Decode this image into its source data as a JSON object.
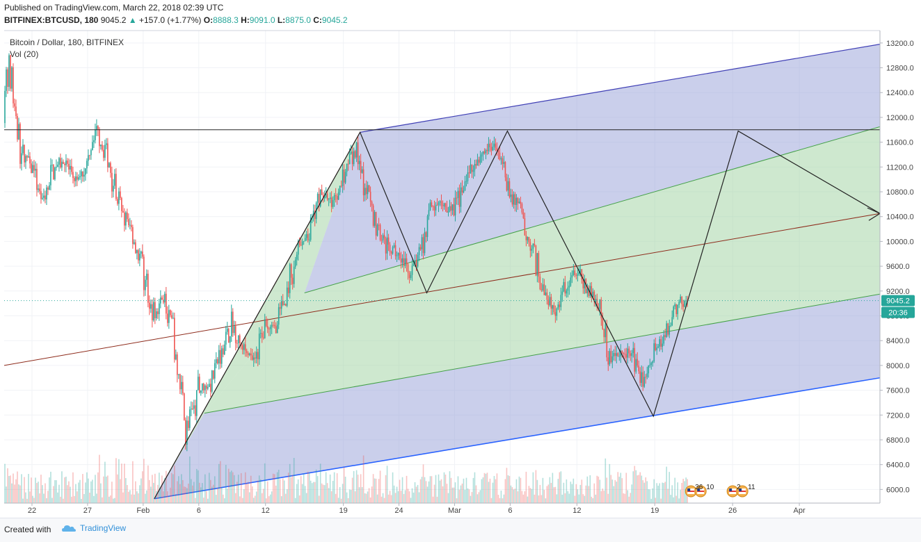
{
  "header": {
    "published": "Published on TradingView.com, March 22, 2018 02:39 UTC",
    "symbol": "BITFINEX:BTCUSD, 180",
    "last": "9045.2",
    "change": "+157.0 (+1.77%)",
    "o_label": "O:",
    "o": "8888.3",
    "h_label": "H:",
    "h": "9091.0",
    "l_label": "L:",
    "l": "8875.0",
    "c_label": "C:",
    "c": "9045.2"
  },
  "legend": {
    "title": "Bitcoin / Dollar, 180, BITFINEX",
    "volume": "Vol (20)"
  },
  "footer": {
    "created_with": "Created with",
    "brand": "TradingView"
  },
  "events": {
    "event1_a": "36",
    "event1_b": "10",
    "event2_a": "2",
    "event2_b": "11"
  },
  "colors": {
    "up": "#26a69a",
    "down": "#ef5350",
    "channel_purple": "#9fa8da",
    "channel_green": "#a5d6a7",
    "median_line": "#8d2a1a",
    "last_price": "#26a69a"
  },
  "chart_data": {
    "type": "candlestick",
    "title": "Bitcoin / Dollar, 180, BITFINEX",
    "interval_minutes": 180,
    "last_price_label": "9045.2",
    "countdown_label": "20:36",
    "y_ticks": [
      13200,
      12800,
      12400,
      12000,
      11600,
      11200,
      10800,
      10400,
      10000,
      9600,
      9200,
      8800,
      8400,
      8000,
      7600,
      7200,
      6800,
      6400,
      6000
    ],
    "y_tick_labels": [
      "13200.0",
      "12800.0",
      "12400.0",
      "12000.0",
      "11600.0",
      "11200.0",
      "10800.0",
      "10400.0",
      "10000.0",
      "9600.0",
      "9200.0",
      "8800.0",
      "8400.0",
      "8000.0",
      "7600.0",
      "7200.0",
      "6800.0",
      "6400.0",
      "6000.0"
    ],
    "x_ticks": [
      {
        "date": "2018-01-22",
        "label": "22"
      },
      {
        "date": "2018-01-27",
        "label": "27"
      },
      {
        "date": "2018-02-01",
        "label": "Feb"
      },
      {
        "date": "2018-02-06",
        "label": "6"
      },
      {
        "date": "2018-02-12",
        "label": "12"
      },
      {
        "date": "2018-02-19",
        "label": "19"
      },
      {
        "date": "2018-02-24",
        "label": "24"
      },
      {
        "date": "2018-03-01",
        "label": "Mar"
      },
      {
        "date": "2018-03-06",
        "label": "6"
      },
      {
        "date": "2018-03-12",
        "label": "12"
      },
      {
        "date": "2018-03-19",
        "label": "19"
      },
      {
        "date": "2018-03-26",
        "label": "26"
      },
      {
        "date": "2018-04-01",
        "label": "Apr"
      }
    ],
    "ylim": [
      5780,
      13400
    ],
    "xlim": [
      "2018-01-19T12:00",
      "2018-04-08T06:00"
    ],
    "daily_path": [
      [
        "2018-01-19",
        11600
      ],
      [
        "2018-01-20",
        12800
      ],
      [
        "2018-01-21",
        11500
      ],
      [
        "2018-01-22",
        11200
      ],
      [
        "2018-01-23",
        10600
      ],
      [
        "2018-01-24",
        11200
      ],
      [
        "2018-01-25",
        11300
      ],
      [
        "2018-01-26",
        10900
      ],
      [
        "2018-01-27",
        11300
      ],
      [
        "2018-01-28",
        11800
      ],
      [
        "2018-01-29",
        11300
      ],
      [
        "2018-01-30",
        10500
      ],
      [
        "2018-01-31",
        10200
      ],
      [
        "2018-02-01",
        9600
      ],
      [
        "2018-02-02",
        8800
      ],
      [
        "2018-02-03",
        9200
      ],
      [
        "2018-02-04",
        8200
      ],
      [
        "2018-02-05",
        6900
      ],
      [
        "2018-02-06",
        7600
      ],
      [
        "2018-02-07",
        7700
      ],
      [
        "2018-02-08",
        8200
      ],
      [
        "2018-02-09",
        8700
      ],
      [
        "2018-02-10",
        8300
      ],
      [
        "2018-02-11",
        8100
      ],
      [
        "2018-02-12",
        8600
      ],
      [
        "2018-02-13",
        8600
      ],
      [
        "2018-02-14",
        9200
      ],
      [
        "2018-02-15",
        9900
      ],
      [
        "2018-02-16",
        10100
      ],
      [
        "2018-02-17",
        10800
      ],
      [
        "2018-02-18",
        10600
      ],
      [
        "2018-02-19",
        11000
      ],
      [
        "2018-02-20",
        11500
      ],
      [
        "2018-02-21",
        10900
      ],
      [
        "2018-02-22",
        10300
      ],
      [
        "2018-02-23",
        9900
      ],
      [
        "2018-02-24",
        9800
      ],
      [
        "2018-02-25",
        9500
      ],
      [
        "2018-02-26",
        9800
      ],
      [
        "2018-02-27",
        10500
      ],
      [
        "2018-02-28",
        10600
      ],
      [
        "2018-03-01",
        10500
      ],
      [
        "2018-03-02",
        11000
      ],
      [
        "2018-03-03",
        11300
      ],
      [
        "2018-03-04",
        11500
      ],
      [
        "2018-03-05",
        11500
      ],
      [
        "2018-03-06",
        10800
      ],
      [
        "2018-03-07",
        10500
      ],
      [
        "2018-03-08",
        9900
      ],
      [
        "2018-03-09",
        9200
      ],
      [
        "2018-03-10",
        8800
      ],
      [
        "2018-03-11",
        9300
      ],
      [
        "2018-03-12",
        9600
      ],
      [
        "2018-03-13",
        9200
      ],
      [
        "2018-03-14",
        9000
      ],
      [
        "2018-03-15",
        8100
      ],
      [
        "2018-03-16",
        8200
      ],
      [
        "2018-03-17",
        8200
      ],
      [
        "2018-03-18",
        7700
      ],
      [
        "2018-03-19",
        8200
      ],
      [
        "2018-03-20",
        8500
      ],
      [
        "2018-03-21",
        9000
      ],
      [
        "2018-03-22",
        9045
      ]
    ],
    "channel": {
      "median_start": [
        "2018-01-19T12:00",
        8000
      ],
      "median_end": [
        "2018-04-08T06:00",
        10450
      ],
      "outer_upper_start": [
        "2018-02-20T12:00",
        11760
      ],
      "outer_upper_end": [
        "2018-04-08T06:00",
        13180
      ],
      "inner_upper_start": [
        "2018-02-15T12:00",
        9170
      ],
      "inner_upper_end": [
        "2018-04-08T06:00",
        11850
      ],
      "inner_lower_start": [
        "2018-02-06T12:00",
        7230
      ],
      "inner_lower_end": [
        "2018-04-08T06:00",
        9150
      ],
      "outer_lower_start": [
        "2018-02-02T00:00",
        5850
      ],
      "outer_lower_end": [
        "2018-04-08T06:00",
        7800
      ]
    },
    "horizontal_line": 11800,
    "zigzag": [
      [
        "2018-02-02T00:00",
        5850
      ],
      [
        "2018-02-20T12:00",
        11760
      ],
      [
        "2018-02-26T12:00",
        9170
      ],
      [
        "2018-03-05T18:00",
        11780
      ],
      [
        "2018-03-18T21:00",
        7180
      ],
      [
        "2018-03-26T12:00",
        11780
      ],
      [
        "2018-04-08T06:00",
        10450
      ]
    ]
  }
}
